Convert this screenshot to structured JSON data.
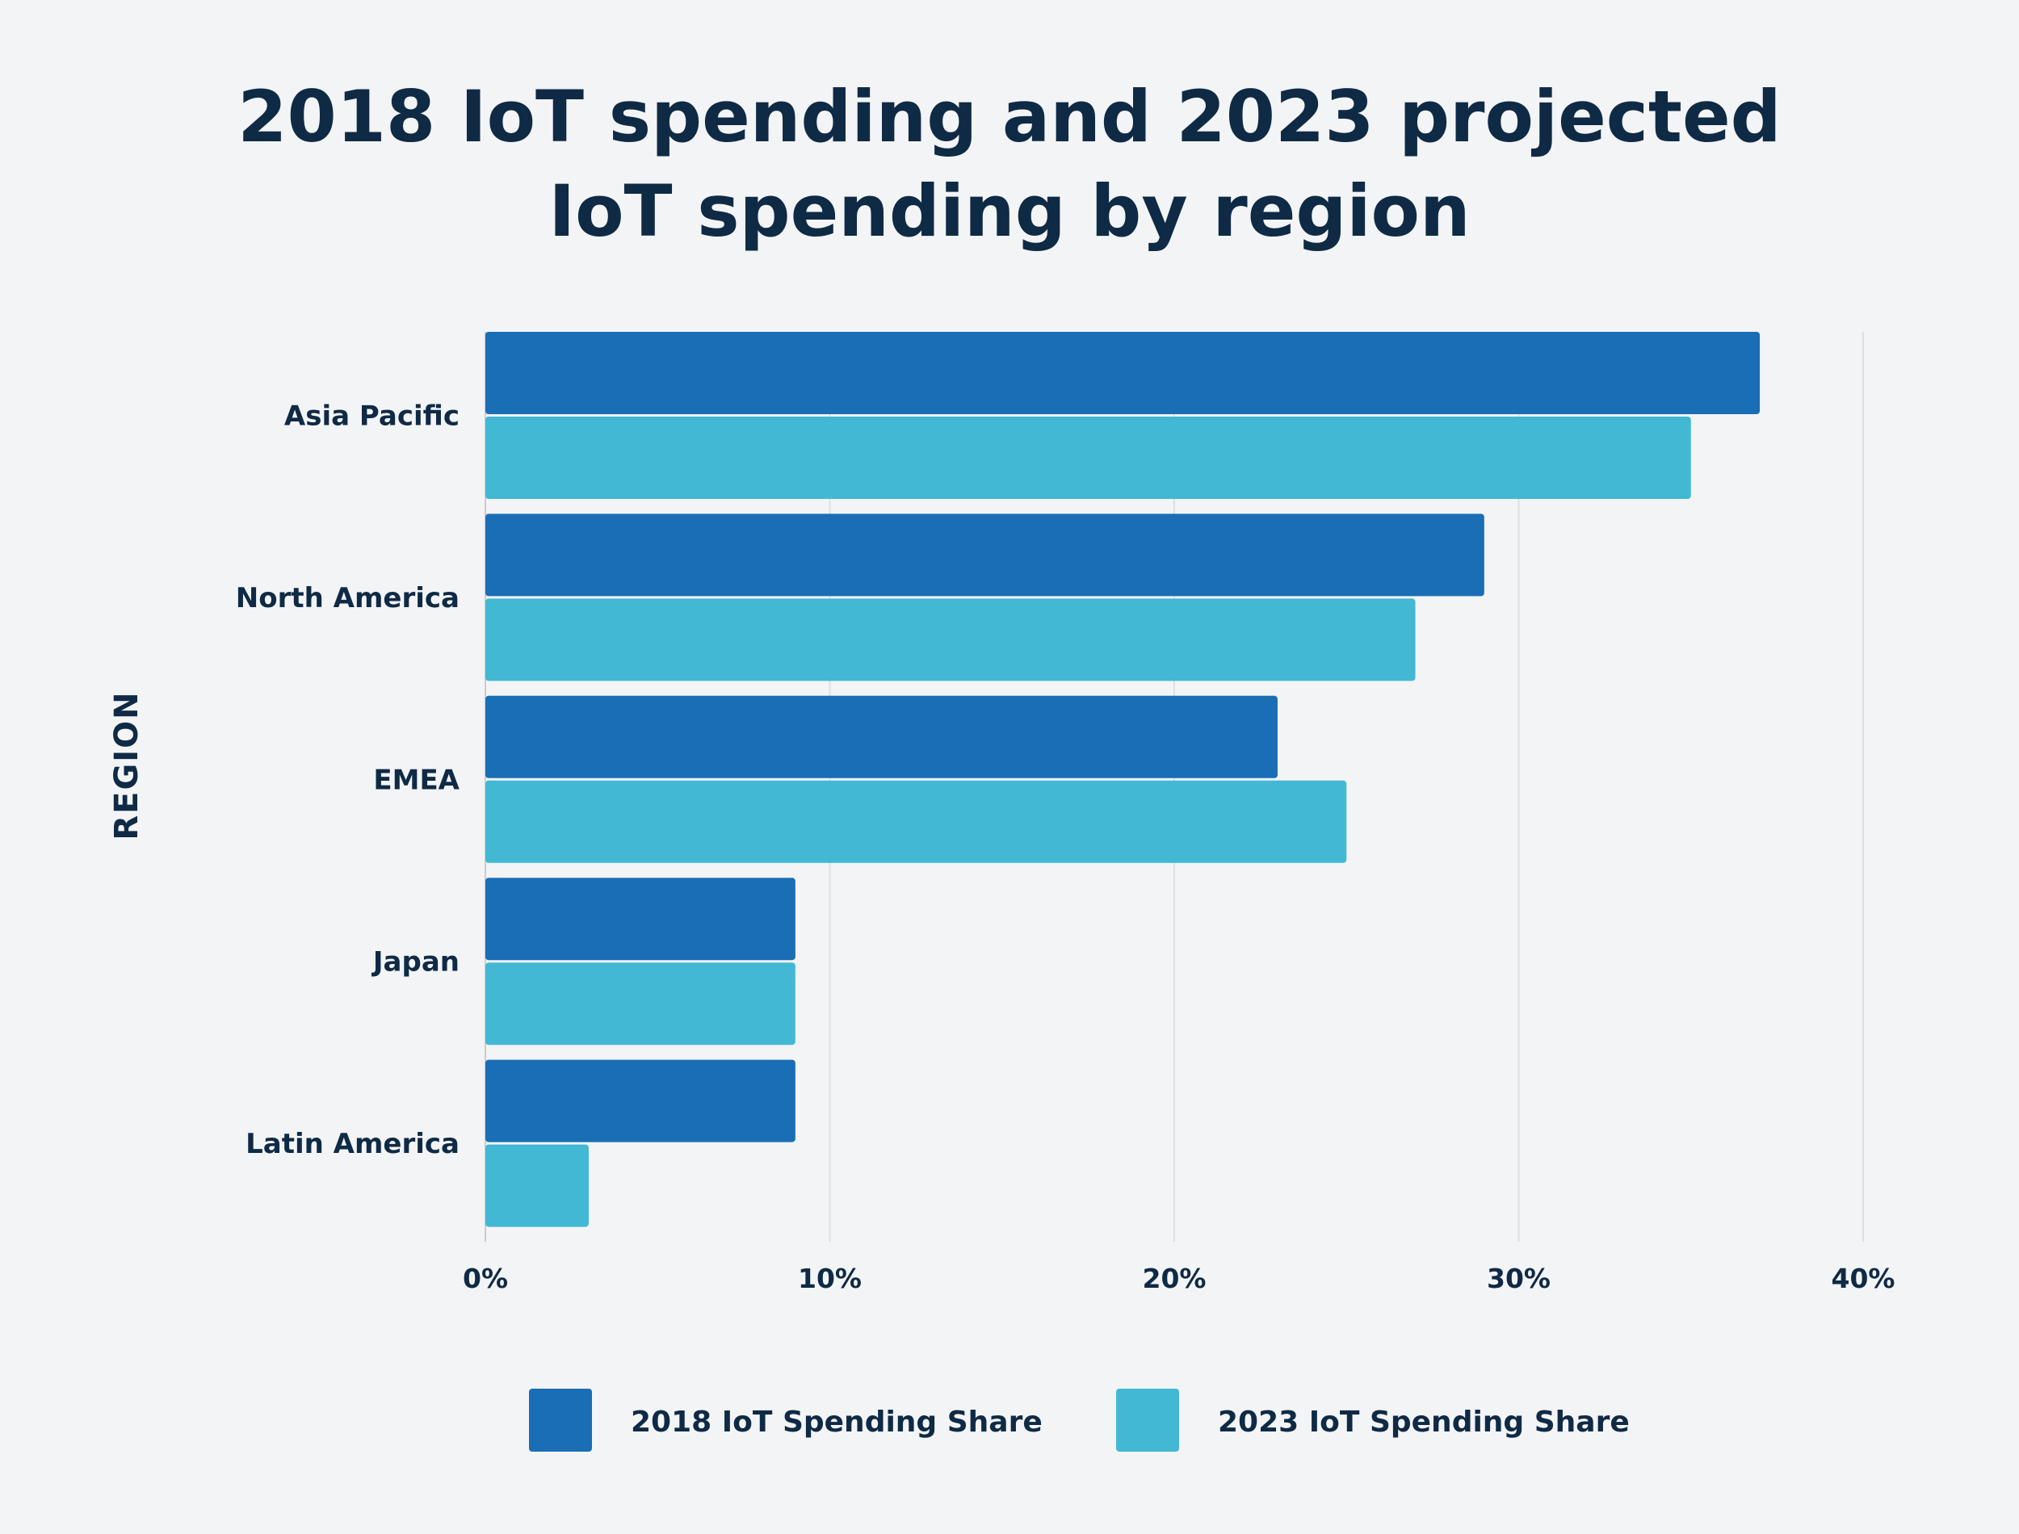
{
  "chart_data": {
    "type": "bar",
    "orientation": "horizontal",
    "title_lines": [
      "2018 IoT spending and 2023 projected",
      "IoT spending by region"
    ],
    "ylabel": "REGION",
    "xlabel": "",
    "categories": [
      "Asia Pacific",
      "North America",
      "EMEA",
      "Japan",
      "Latin America"
    ],
    "series": [
      {
        "name": "2018 IoT Spending Share",
        "color": "#1a6eb5",
        "values": [
          37,
          29,
          23,
          9,
          9
        ]
      },
      {
        "name": "2023 IoT Spending Share",
        "color": "#42b8d5",
        "values": [
          35,
          27,
          25,
          9,
          3
        ]
      }
    ],
    "xlim": [
      0,
      40
    ],
    "xticks": [
      0,
      10,
      20,
      30,
      40
    ],
    "xtick_labels": [
      "0%",
      "10%",
      "20%",
      "30%",
      "40%"
    ],
    "grid": "vertical",
    "legend_position": "bottom"
  }
}
